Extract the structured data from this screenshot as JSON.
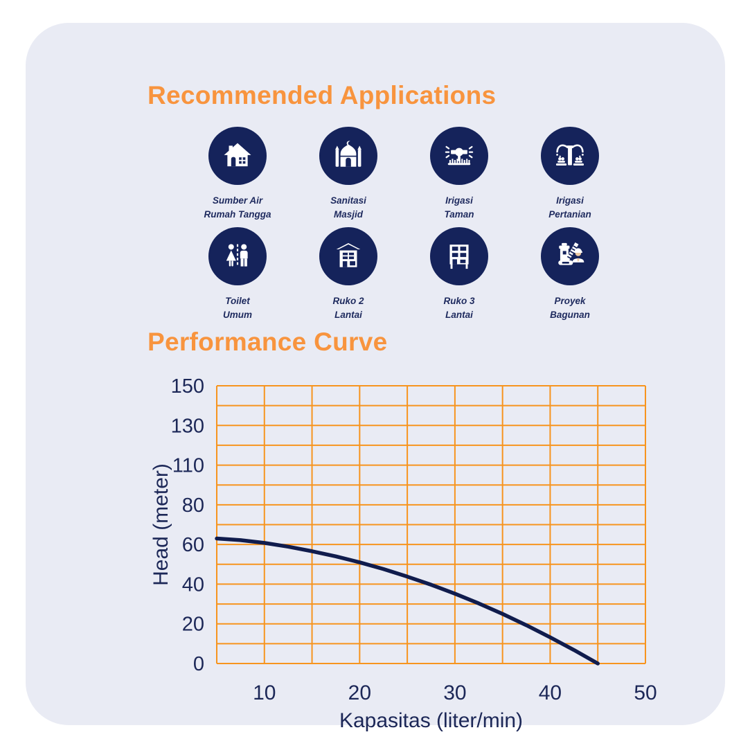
{
  "colors": {
    "orange": "#f8943e",
    "grid": "#f7941e",
    "navy": "#15235b",
    "text_navy": "#1c2757",
    "curve": "#101c4d",
    "card_bg": "#e9ebf4",
    "page_bg": "#ffffff",
    "skin": "#ecc9a3"
  },
  "applications": {
    "title": "Recommended Applications",
    "items": [
      {
        "icon": "house-icon",
        "label_lines": [
          "Sumber Air",
          "Rumah Tangga"
        ]
      },
      {
        "icon": "mosque-icon",
        "label_lines": [
          "Sanitasi",
          "Masjid"
        ]
      },
      {
        "icon": "sprinkler-icon",
        "label_lines": [
          "Irigasi",
          "Taman"
        ]
      },
      {
        "icon": "irrigation-icon",
        "label_lines": [
          "Irigasi",
          "Pertanian"
        ]
      },
      {
        "icon": "restroom-icon",
        "label_lines": [
          "Toilet",
          "Umum"
        ]
      },
      {
        "icon": "building-2-icon",
        "label_lines": [
          "Ruko 2",
          "Lantai"
        ]
      },
      {
        "icon": "building-3-icon",
        "label_lines": [
          "Ruko 3",
          "Lantai"
        ]
      },
      {
        "icon": "construction-icon",
        "label_lines": [
          "Proyek",
          "Bagunan"
        ]
      }
    ]
  },
  "performance": {
    "title": "Performance Curve"
  },
  "chart_data": {
    "type": "line",
    "title": "Performance Curve",
    "xlabel": "Kapasitas (liter/min)",
    "ylabel": "Head (meter)",
    "x_range": [
      5,
      50
    ],
    "x_grid_step": 5,
    "x_ticks": [
      10,
      20,
      30,
      40,
      50
    ],
    "y_rows": 14,
    "y_units_per_row": 10,
    "y_tick_labels_top_to_bottom": [
      "150",
      "130",
      "110",
      "80",
      "60",
      "40",
      "20",
      "0"
    ],
    "grid": true,
    "legend": "none",
    "series": [
      {
        "name": "head_vs_capacity",
        "points": [
          [
            5,
            63
          ],
          [
            7.5,
            62.2
          ],
          [
            10,
            60.8
          ],
          [
            12.5,
            58.9
          ],
          [
            15,
            56.6
          ],
          [
            17.5,
            54
          ],
          [
            20,
            51
          ],
          [
            22.5,
            47.6
          ],
          [
            25,
            43.8
          ],
          [
            27.5,
            39.7
          ],
          [
            30,
            35.2
          ],
          [
            32.5,
            30.3
          ],
          [
            35,
            25
          ],
          [
            37.5,
            19.3
          ],
          [
            40,
            13.2
          ],
          [
            42.5,
            6.8
          ],
          [
            45,
            0
          ]
        ]
      }
    ]
  }
}
